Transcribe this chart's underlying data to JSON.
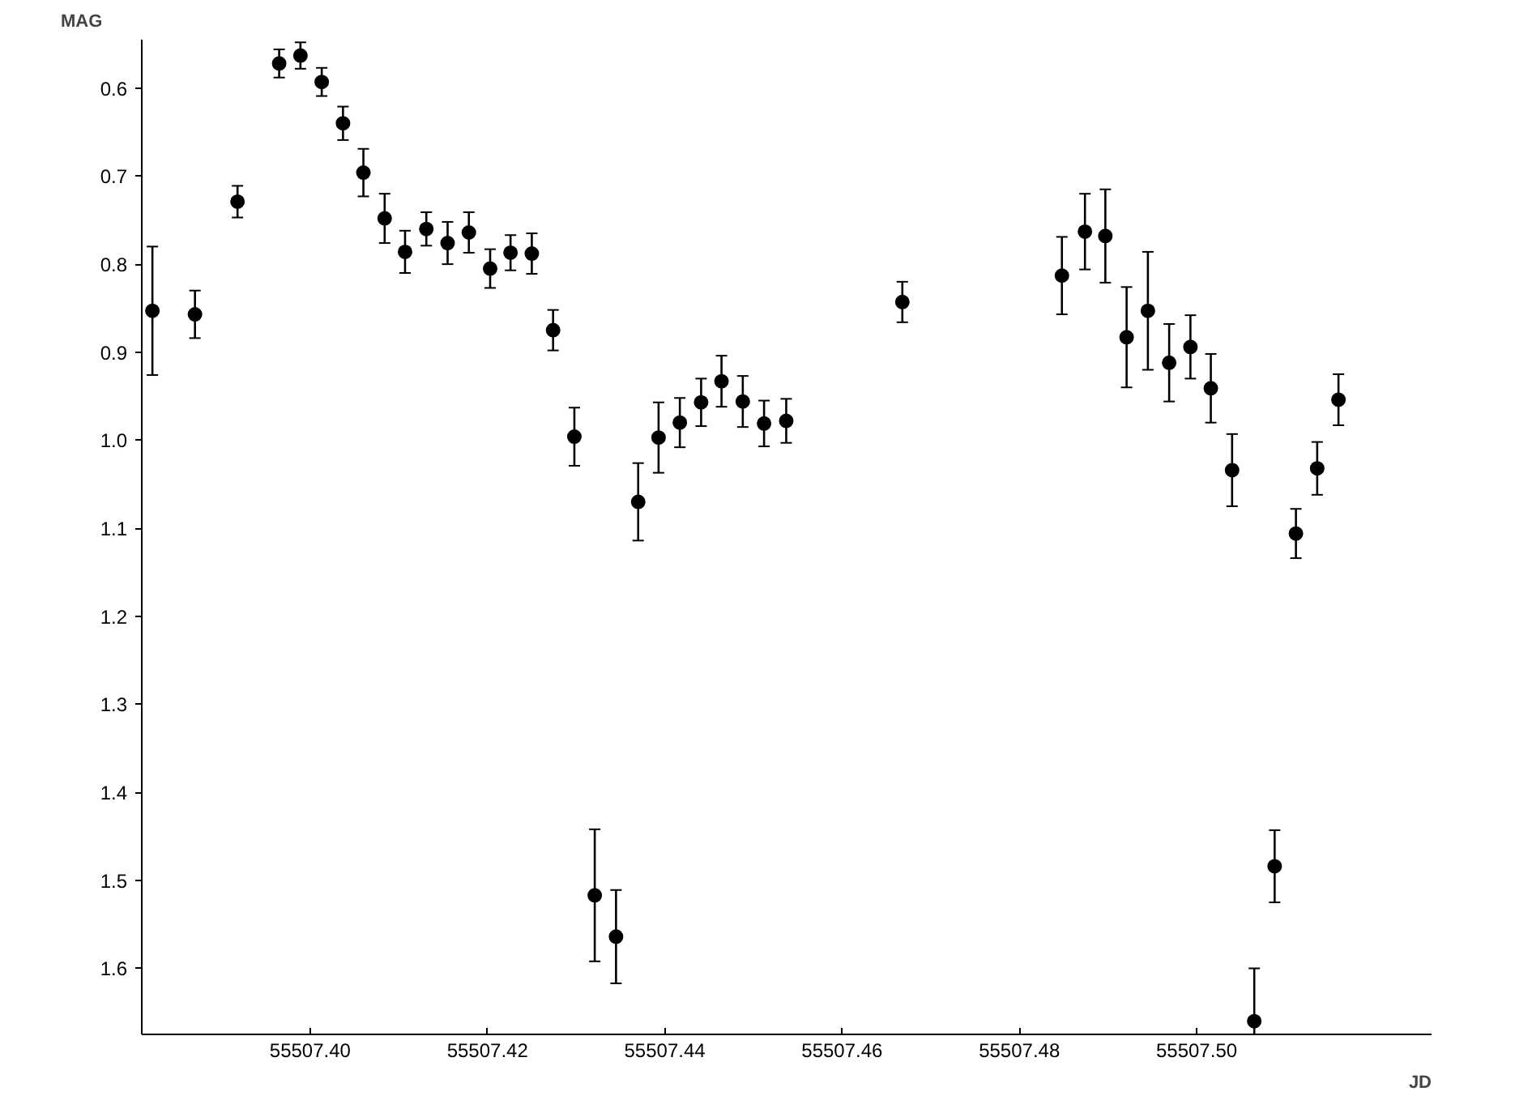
{
  "chart_data": {
    "type": "scatter",
    "xlabel": "JD",
    "ylabel": "MAG",
    "marker": "circle",
    "grid": false,
    "x": [
      55507.3822,
      55507.387,
      55507.3918,
      55507.3965,
      55507.3989,
      55507.4013,
      55507.4037,
      55507.406,
      55507.4084,
      55507.4107,
      55507.4131,
      55507.4155,
      55507.4179,
      55507.4203,
      55507.4226,
      55507.425,
      55507.4274,
      55507.4298,
      55507.4321,
      55507.4345,
      55507.437,
      55507.4393,
      55507.4417,
      55507.4441,
      55507.4464,
      55507.4488,
      55507.4512,
      55507.4537,
      55507.4668,
      55507.4848,
      55507.4874,
      55507.4897,
      55507.4921,
      55507.4945,
      55507.4969,
      55507.4993,
      55507.5016,
      55507.504,
      55507.5065,
      55507.5088,
      55507.5112,
      55507.5136,
      55507.516
    ],
    "series": [
      {
        "color": "#000000",
        "values": [
          0.853,
          0.857,
          0.729,
          0.572,
          0.563,
          0.593,
          0.64,
          0.696,
          0.748,
          0.786,
          0.76,
          0.776,
          0.764,
          0.805,
          0.787,
          0.788,
          0.875,
          0.996,
          1.517,
          1.564,
          1.07,
          0.997,
          0.98,
          0.957,
          0.933,
          0.956,
          0.981,
          0.978,
          0.843,
          0.813,
          0.763,
          0.768,
          0.883,
          0.853,
          0.912,
          0.894,
          0.941,
          1.034,
          1.66,
          1.484,
          1.106,
          1.032,
          0.954
        ],
        "errors": [
          0.073,
          0.027,
          0.018,
          0.016,
          0.015,
          0.016,
          0.019,
          0.027,
          0.028,
          0.024,
          0.019,
          0.024,
          0.023,
          0.022,
          0.02,
          0.023,
          0.023,
          0.033,
          0.075,
          0.053,
          0.044,
          0.04,
          0.028,
          0.027,
          0.029,
          0.029,
          0.026,
          0.025,
          0.023,
          0.044,
          0.043,
          0.053,
          0.057,
          0.067,
          0.044,
          0.036,
          0.039,
          0.041,
          0.06,
          0.041,
          0.028,
          0.03,
          0.029
        ]
      }
    ],
    "xlim": [
      55507.381,
      55507.5265
    ],
    "xticks": [
      {
        "value": 55507.4,
        "label": "55507.40"
      },
      {
        "value": 55507.42,
        "label": "55507.42"
      },
      {
        "value": 55507.44,
        "label": "55507.44"
      },
      {
        "value": 55507.46,
        "label": "55507.46"
      },
      {
        "value": 55507.48,
        "label": "55507.48"
      },
      {
        "value": 55507.5,
        "label": "55507.50"
      }
    ],
    "ylim": [
      1.675,
      0.545
    ],
    "yticks": [
      0.6,
      0.7,
      0.8,
      0.9,
      {
        "value": 1.0,
        "label": "1.0"
      },
      1.1,
      1.2,
      1.3,
      1.4,
      1.5,
      1.6
    ]
  }
}
